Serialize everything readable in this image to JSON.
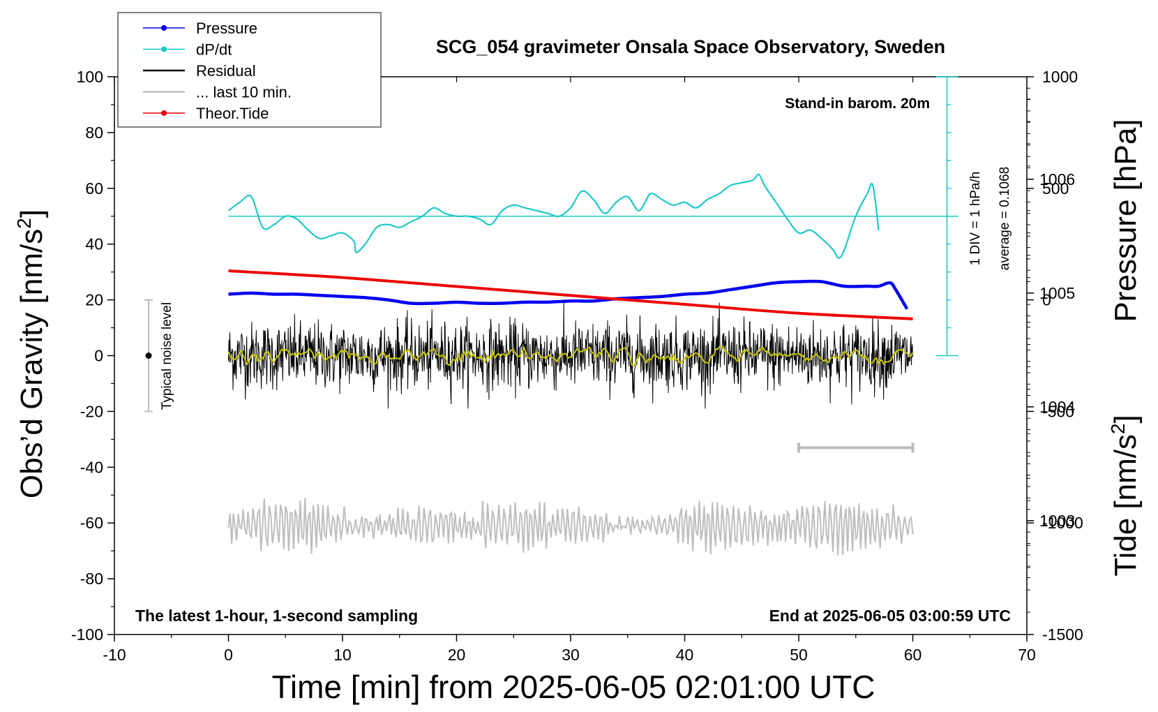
{
  "chart_data": {
    "type": "line",
    "title": "SCG_054 gravimeter Onsala Space Observatory, Sweden",
    "xlabel": "Time [min] from 2025-06-05 02:01:00 UTC",
    "ylabel_left_main": "Obs’d Gravity [nm/s",
    "ylabel_left_sup": "2",
    "ylabel_left_end": "]",
    "ylabel_right_top": "Pressure [hPa]",
    "ylabel_right_bottom_main": "Tide [nm/s",
    "ylabel_right_bottom_sup": "2",
    "ylabel_right_bottom_end": "]",
    "xlim": [
      -10,
      70
    ],
    "ylim_left": [
      -100,
      100
    ],
    "ylim_pressure": [
      1002.0,
      1006.9
    ],
    "ylim_tide": [
      -1500,
      1000
    ],
    "x_ticks": [
      "-10",
      "0",
      "10",
      "20",
      "30",
      "40",
      "50",
      "60",
      "70"
    ],
    "y_ticks_left": [
      "100",
      "80",
      "60",
      "40",
      "20",
      "0",
      "-20",
      "-40",
      "-60",
      "-80",
      "-100"
    ],
    "y_ticks_pressure": [
      "1006",
      "1005",
      "1004",
      "1003"
    ],
    "y_ticks_tide": [
      "1000",
      "500",
      "0",
      "-500",
      "-1000",
      "-1500"
    ],
    "annotation_top_right": "Stand-in barom. 20m",
    "annotation_bottom_left": "The latest 1-hour, 1-second sampling",
    "annotation_bottom_right": "End at 2025-06-05 03:00:59 UTC",
    "noise_label": "Typical noise level",
    "noise_bar_range": [
      -20,
      20
    ],
    "dpdt_scale_label": "1 DIV = 1 hPa/h",
    "dpdt_average_label": "average = 0.1068",
    "colors": {
      "pressure": "#0000ee",
      "dpdt": "#1ec8c8",
      "residual": "#000000",
      "residual_smooth": "#c8c800",
      "last10": "#bebebe",
      "tide": "#ee0000"
    },
    "legend": [
      {
        "label": "Pressure",
        "style": "line-dot",
        "color": "#0000ee"
      },
      {
        "label": "dP/dt",
        "style": "line-dot",
        "color": "#1ec8c8"
      },
      {
        "label": "Residual",
        "style": "line",
        "color": "#000000"
      },
      {
        "label": "... last 10 min.",
        "style": "line",
        "color": "#bebebe"
      },
      {
        "label": "Theor.Tide",
        "style": "line-dot",
        "color": "#ee0000"
      }
    ],
    "series": [
      {
        "name": "Pressure",
        "axis": "pressure",
        "points": [
          [
            0,
            1004.99
          ],
          [
            2,
            1005.0
          ],
          [
            4,
            1004.99
          ],
          [
            6,
            1004.99
          ],
          [
            8,
            1004.98
          ],
          [
            10,
            1004.97
          ],
          [
            12,
            1004.96
          ],
          [
            14,
            1004.94
          ],
          [
            16,
            1004.91
          ],
          [
            18,
            1004.91
          ],
          [
            20,
            1004.92
          ],
          [
            22,
            1004.91
          ],
          [
            24,
            1004.91
          ],
          [
            26,
            1004.92
          ],
          [
            28,
            1004.92
          ],
          [
            30,
            1004.93
          ],
          [
            32,
            1004.93
          ],
          [
            34,
            1004.95
          ],
          [
            36,
            1004.96
          ],
          [
            38,
            1004.97
          ],
          [
            40,
            1004.99
          ],
          [
            42,
            1005.0
          ],
          [
            44,
            1005.03
          ],
          [
            46,
            1005.06
          ],
          [
            48,
            1005.09
          ],
          [
            50,
            1005.1
          ],
          [
            52,
            1005.1
          ],
          [
            54,
            1005.06
          ],
          [
            56,
            1005.06
          ],
          [
            57,
            1005.06
          ],
          [
            58,
            1005.09
          ],
          [
            58.5,
            1005.03
          ],
          [
            59.5,
            1004.86
          ]
        ]
      },
      {
        "name": "dP/dt",
        "axis": "dpdt",
        "baseline": 50,
        "points": [
          [
            0,
            52
          ],
          [
            1,
            55
          ],
          [
            2,
            57
          ],
          [
            3,
            46
          ],
          [
            4,
            47
          ],
          [
            5,
            50
          ],
          [
            6,
            49
          ],
          [
            7,
            45
          ],
          [
            8,
            42
          ],
          [
            9,
            43
          ],
          [
            10,
            44
          ],
          [
            11,
            41
          ],
          [
            11.2,
            37
          ],
          [
            12,
            40
          ],
          [
            13,
            46
          ],
          [
            14,
            47
          ],
          [
            15,
            46
          ],
          [
            16,
            48
          ],
          [
            17,
            50
          ],
          [
            18,
            53
          ],
          [
            19,
            51
          ],
          [
            20,
            50
          ],
          [
            21,
            50
          ],
          [
            22,
            49
          ],
          [
            23,
            47
          ],
          [
            24,
            52
          ],
          [
            25,
            54
          ],
          [
            26,
            53
          ],
          [
            27,
            52
          ],
          [
            28,
            51
          ],
          [
            29,
            50
          ],
          [
            30,
            53
          ],
          [
            31,
            59
          ],
          [
            32,
            56
          ],
          [
            33,
            51
          ],
          [
            34,
            55
          ],
          [
            35,
            57
          ],
          [
            36,
            52
          ],
          [
            37,
            58
          ],
          [
            38,
            56
          ],
          [
            39,
            54
          ],
          [
            40,
            55
          ],
          [
            41,
            53
          ],
          [
            42,
            56
          ],
          [
            43,
            58
          ],
          [
            44,
            61
          ],
          [
            45,
            62
          ],
          [
            46,
            63
          ],
          [
            46.5,
            65
          ],
          [
            47,
            61
          ],
          [
            48,
            55
          ],
          [
            49,
            49
          ],
          [
            50,
            44
          ],
          [
            51,
            45
          ],
          [
            52,
            42
          ],
          [
            53,
            38
          ],
          [
            53.5,
            35
          ],
          [
            54,
            38
          ],
          [
            55,
            50
          ],
          [
            56,
            58
          ],
          [
            56.5,
            61
          ],
          [
            57,
            45
          ]
        ]
      },
      {
        "name": "Residual",
        "axis": "left",
        "x_range": [
          0,
          60
        ],
        "amplitude": 8
      },
      {
        "name": "... last 10 min.",
        "axis": "left",
        "x_range": [
          0,
          60
        ],
        "center": -61,
        "amplitude": 9
      },
      {
        "name": "Theor.Tide",
        "axis": "tide",
        "points": [
          [
            0,
            130
          ],
          [
            10,
            100
          ],
          [
            20,
            60
          ],
          [
            30,
            20
          ],
          [
            40,
            -20
          ],
          [
            50,
            -60
          ],
          [
            60,
            -85
          ]
        ]
      }
    ],
    "last10_marker": {
      "x_range": [
        50,
        60
      ],
      "y": -33
    },
    "grid": false,
    "legend_position": "top-left"
  }
}
